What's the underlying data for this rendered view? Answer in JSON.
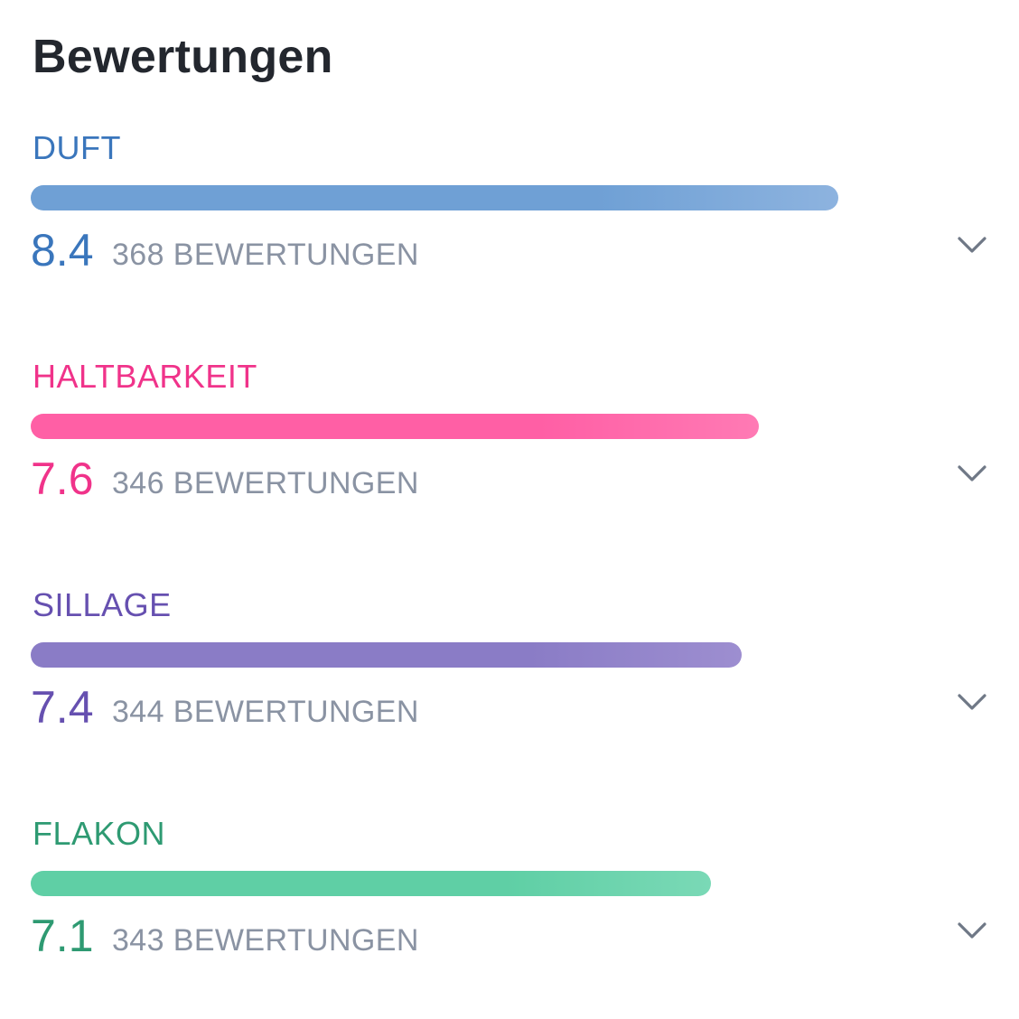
{
  "title": "Bewertungen",
  "ratings": [
    {
      "label": "DUFT",
      "score": "8.4",
      "count": "368 BEWERTUNGEN",
      "fraction": 0.86,
      "color": "#3a76bc",
      "bar_start": "#6fa0d5",
      "bar_end": "#8db3df",
      "icon": "chevron-down-icon"
    },
    {
      "label": "HALTBARKEIT",
      "score": "7.6",
      "count": "346 BEWERTUNGEN",
      "fraction": 0.775,
      "color": "#f0338a",
      "bar_start": "#ff5fa5",
      "bar_end": "#ff7ab4",
      "icon": "chevron-down-icon"
    },
    {
      "label": "SILLAGE",
      "score": "7.4",
      "count": "344 BEWERTUNGEN",
      "fraction": 0.757,
      "color": "#6650b0",
      "bar_start": "#8a7cc6",
      "bar_end": "#9d8ed0",
      "icon": "chevron-down-icon"
    },
    {
      "label": "FLAKON",
      "score": "7.1",
      "count": "343 BEWERTUNGEN",
      "fraction": 0.724,
      "color": "#2e9a72",
      "bar_start": "#5fcfa5",
      "bar_end": "#7ad9b6",
      "icon": "chevron-down-icon"
    }
  ]
}
